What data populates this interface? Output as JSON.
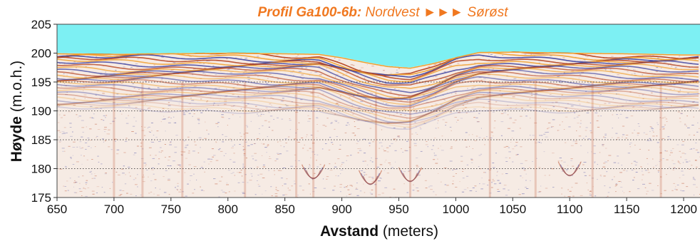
{
  "chart_data": {
    "type": "heatmap",
    "title": {
      "bold": "Profil Ga100-6b:",
      "rest": " Nordvest ►►► Sørøst"
    },
    "xlabel": {
      "bold": "Avstand",
      "rest": " (meters)"
    },
    "ylabel": {
      "bold": "Høyde",
      "rest": " (m.o.h.)"
    },
    "xlim": [
      650,
      1215
    ],
    "ylim": [
      175,
      205
    ],
    "x_ticks": [
      650,
      700,
      750,
      800,
      850,
      900,
      950,
      1000,
      1050,
      1100,
      1150,
      1200
    ],
    "y_ticks": [
      175,
      180,
      185,
      190,
      195,
      200,
      205
    ],
    "horizontal_gridlines": [
      180,
      185,
      190,
      195
    ],
    "grid": true,
    "surface_profile": {
      "x": [
        650,
        700,
        750,
        800,
        850,
        880,
        900,
        920,
        940,
        960,
        980,
        1000,
        1020,
        1050,
        1100,
        1150,
        1200,
        1215
      ],
      "y": [
        200.0,
        199.9,
        200.0,
        200.1,
        200.0,
        199.9,
        199.3,
        198.5,
        197.8,
        197.5,
        198.3,
        199.3,
        200.2,
        200.3,
        200.1,
        200.0,
        199.8,
        199.8
      ]
    },
    "colors": {
      "sky": "#7df0f3",
      "title": "#f07820",
      "positive": "#b5431f",
      "negative": "#3a3f9e",
      "peak": "#f0a030",
      "background": "#f6ebe4"
    }
  }
}
